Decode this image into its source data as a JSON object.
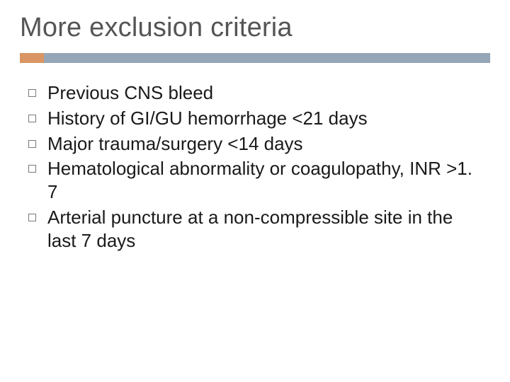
{
  "slide": {
    "title": "More exclusion criteria",
    "title_fontsize": 38,
    "title_color": "#555555",
    "accent_color": "#d99562",
    "rule_color": "#94a6b7",
    "background_color": "#ffffff",
    "bullet_border_color": "#7a7a7a",
    "bullet_text_color": "#1a1a1a",
    "bullet_fontsize": 26,
    "bullets": [
      "Previous CNS bleed",
      "History of GI/GU hemorrhage <21 days",
      "Major trauma/surgery <14 days",
      "Hematological abnormality or coagulopathy, INR >1. 7",
      "Arterial puncture at a non-compressible site in the last 7 days"
    ]
  }
}
